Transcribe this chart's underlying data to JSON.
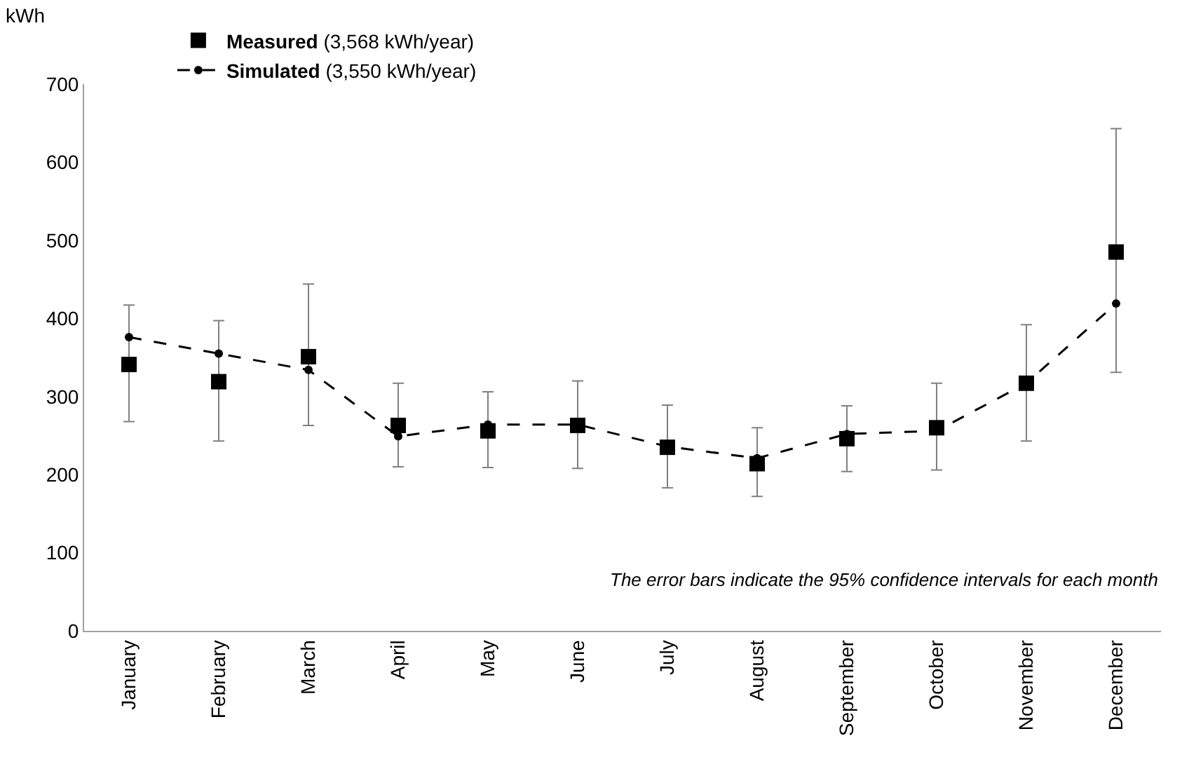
{
  "chart_data": {
    "type": "line",
    "ylabel": "kWh",
    "categories": [
      "January",
      "February",
      "March",
      "April",
      "May",
      "June",
      "July",
      "August",
      "September",
      "October",
      "November",
      "December"
    ],
    "series": [
      {
        "name": "Measured (3,568 kWh/year)",
        "type": "scatter",
        "marker": "square",
        "color": "#000000",
        "values": [
          341,
          319,
          351,
          263,
          256,
          263,
          235,
          214,
          246,
          260,
          317,
          485
        ],
        "errors": [
          [
            268,
            417
          ],
          [
            243,
            397
          ],
          [
            263,
            444
          ],
          [
            210,
            317
          ],
          [
            209,
            306
          ],
          [
            208,
            320
          ],
          [
            183,
            289
          ],
          [
            172,
            260
          ],
          [
            204,
            288
          ],
          [
            206,
            317
          ],
          [
            243,
            392
          ],
          [
            331,
            643
          ]
        ]
      },
      {
        "name": "Simulated (3,550 kWh/year)",
        "marker": "circle",
        "line_style": "dashed",
        "color": "#000000",
        "values": [
          376,
          355,
          334,
          249,
          264,
          264,
          236,
          221,
          252,
          256,
          317,
          419
        ]
      }
    ],
    "ylim": [
      0,
      700
    ],
    "yticks": [
      0,
      100,
      200,
      300,
      400,
      500,
      600,
      700
    ],
    "grid": false,
    "legend": "top left",
    "annotations": [
      "The error bars indicate the 95% confidence intervals for each month"
    ]
  }
}
